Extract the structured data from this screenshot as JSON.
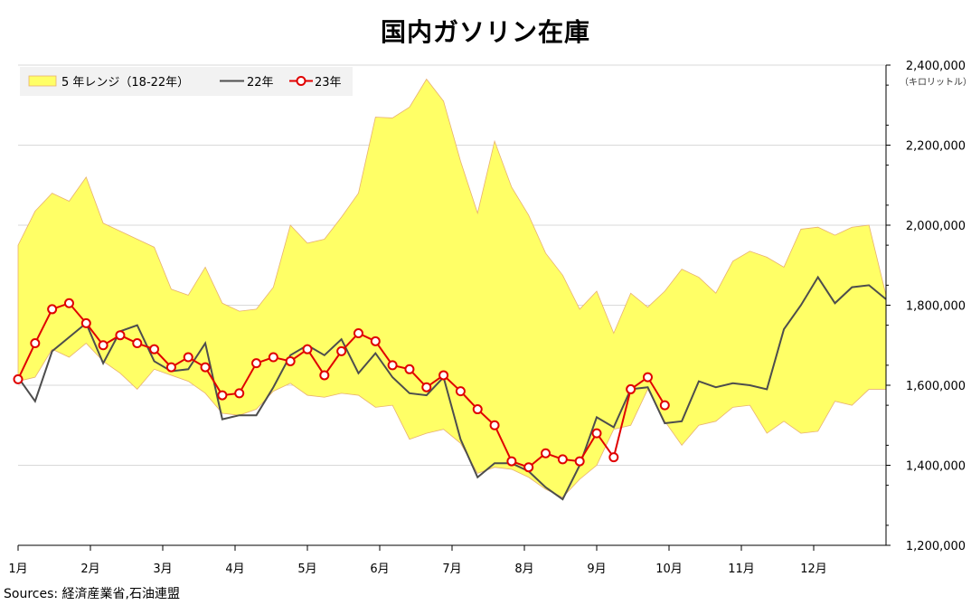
{
  "chart_data": {
    "type": "line",
    "title": "国内ガソリン在庫",
    "source": "Sources: 経済産業省,石油連盟",
    "y_unit": "（キロリットル）",
    "ylim": [
      1200000,
      2400000
    ],
    "y_ticks": [
      1200000,
      1400000,
      1600000,
      1800000,
      2000000,
      2200000,
      2400000
    ],
    "y_tick_labels": [
      "1,200,000",
      "1,400,000",
      "1,600,000",
      "1,800,000",
      "2,000,000",
      "2,200,000",
      "2,400,000"
    ],
    "x_tick_labels": [
      "1月",
      "2月",
      "3月",
      "4月",
      "5月",
      "6月",
      "7月",
      "8月",
      "9月",
      "10月",
      "11月",
      "12月"
    ],
    "weeks": 48,
    "grid": "horizontal",
    "legend_position": "top-left",
    "colors": {
      "band_fill": "#ffff66",
      "band_edge": "#e8b070",
      "line22": "#4d4d4d",
      "line23": "#e00000",
      "grid": "#d9d9d9"
    },
    "band": {
      "name": "5 年レンジ（18-22年）",
      "max": [
        1950000,
        2035000,
        2080000,
        2060000,
        2120000,
        2005000,
        1985000,
        1965000,
        1945000,
        1840000,
        1825000,
        1895000,
        1805000,
        1785000,
        1790000,
        1845000,
        2000000,
        1955000,
        1965000,
        2020000,
        2080000,
        2270000,
        2268000,
        2295000,
        2365000,
        2310000,
        2160000,
        2030000,
        2210000,
        2095000,
        2025000,
        1930000,
        1875000,
        1790000,
        1835000,
        1730000,
        1830000,
        1795000,
        1835000,
        1890000,
        1870000,
        1830000,
        1910000,
        1935000,
        1920000,
        1895000,
        1990000,
        1995000,
        1975000,
        1995000,
        2000000,
        1825000
      ],
      "min": [
        1610000,
        1620000,
        1690000,
        1670000,
        1705000,
        1660000,
        1630000,
        1590000,
        1640000,
        1625000,
        1610000,
        1580000,
        1530000,
        1525000,
        1540000,
        1585000,
        1605000,
        1575000,
        1570000,
        1580000,
        1575000,
        1545000,
        1550000,
        1465000,
        1480000,
        1490000,
        1455000,
        1380000,
        1395000,
        1390000,
        1370000,
        1340000,
        1320000,
        1365000,
        1400000,
        1490000,
        1500000,
        1590000,
        1510000,
        1450000,
        1500000,
        1510000,
        1545000,
        1550000,
        1480000,
        1510000,
        1480000,
        1485000,
        1560000,
        1550000,
        1590000,
        1590000
      ]
    },
    "series": [
      {
        "name": "22年",
        "values": [
          1620000,
          1560000,
          1685000,
          1720000,
          1755000,
          1655000,
          1735000,
          1750000,
          1660000,
          1635000,
          1640000,
          1705000,
          1515000,
          1525000,
          1525000,
          1595000,
          1675000,
          1700000,
          1675000,
          1715000,
          1630000,
          1680000,
          1620000,
          1580000,
          1575000,
          1620000,
          1465000,
          1370000,
          1405000,
          1405000,
          1385000,
          1345000,
          1315000,
          1400000,
          1520000,
          1495000,
          1590000,
          1595000,
          1505000,
          1510000,
          1610000,
          1595000,
          1605000,
          1600000,
          1590000,
          1740000,
          1800000,
          1870000,
          1805000,
          1845000,
          1850000,
          1815000
        ]
      },
      {
        "name": "23年",
        "values": [
          1615000,
          1705000,
          1790000,
          1805000,
          1755000,
          1700000,
          1725000,
          1705000,
          1690000,
          1645000,
          1670000,
          1645000,
          1575000,
          1580000,
          1655000,
          1670000,
          1660000,
          1690000,
          1625000,
          1685000,
          1730000,
          1710000,
          1650000,
          1640000,
          1595000,
          1625000,
          1585000,
          1540000,
          1500000,
          1410000,
          1395000,
          1430000,
          1415000,
          1410000,
          1480000,
          1420000,
          1590000,
          1620000,
          1550000
        ]
      }
    ]
  }
}
